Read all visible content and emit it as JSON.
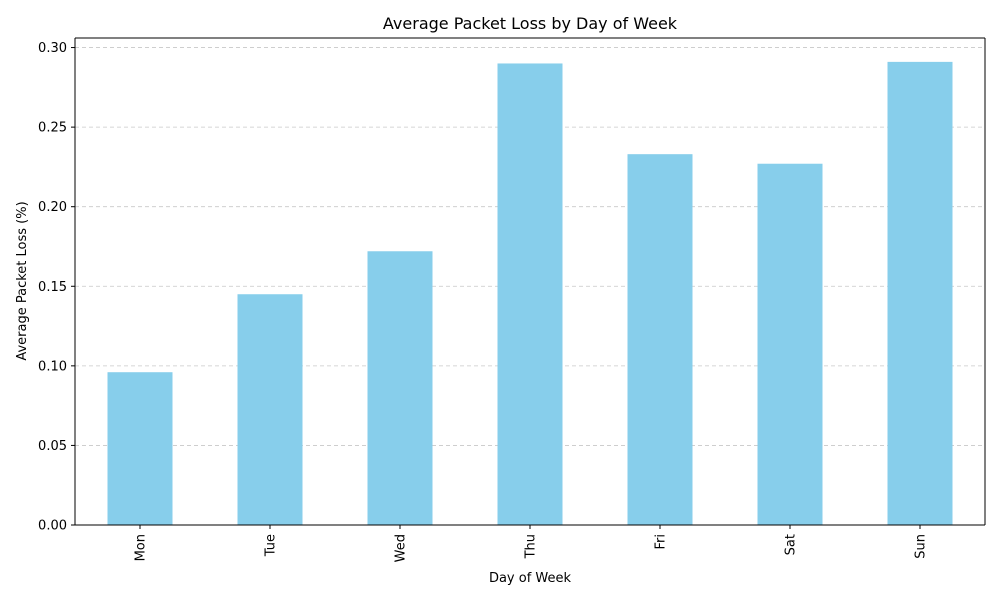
{
  "chart_data": {
    "type": "bar",
    "title": "Average Packet Loss by Day of Week",
    "xlabel": "Day of Week",
    "ylabel": "Average Packet Loss (%)",
    "categories": [
      "Mon",
      "Tue",
      "Wed",
      "Thu",
      "Fri",
      "Sat",
      "Sun"
    ],
    "values": [
      0.096,
      0.145,
      0.172,
      0.29,
      0.233,
      0.227,
      0.291
    ],
    "ylim": [
      0,
      0.306
    ],
    "yticks": [
      0.0,
      0.05,
      0.1,
      0.15,
      0.2,
      0.25,
      0.3
    ],
    "ytick_labels": [
      "0.00",
      "0.05",
      "0.10",
      "0.15",
      "0.20",
      "0.25",
      "0.30"
    ],
    "grid": "y-dashed",
    "legend": "none",
    "colors": {
      "bar": "#87ceeb",
      "grid": "#c8c8c8",
      "axis": "#000000"
    }
  }
}
